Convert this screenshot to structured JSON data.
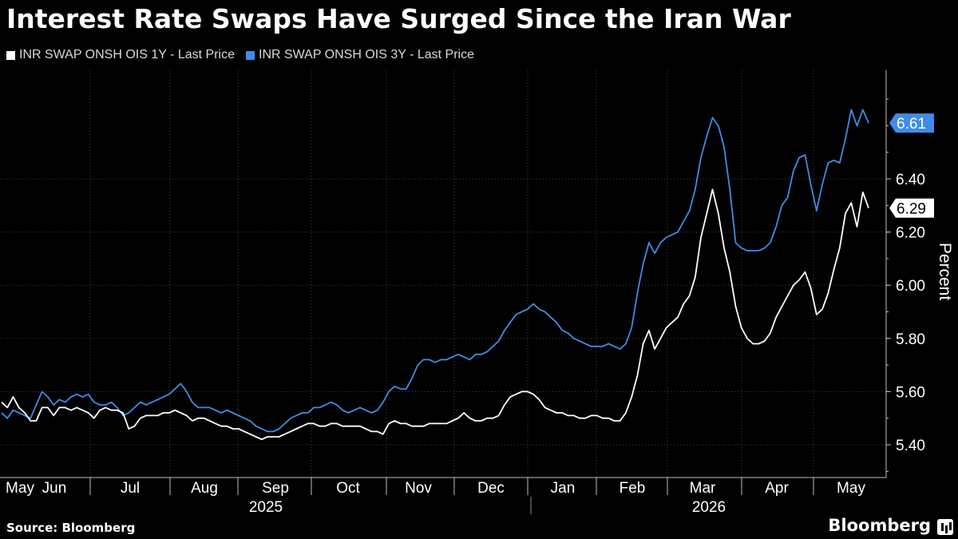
{
  "title": "Interest Rate Swaps Have Surged Since the Iran War",
  "source": "Source: Bloomberg",
  "brand": "Bloomberg",
  "chart_data": {
    "type": "line",
    "ylabel": "Percent",
    "ylim": [
      5.35,
      6.8
    ],
    "yticks": [
      "5.40",
      "5.60",
      "5.80",
      "6.00",
      "6.20",
      "6.40"
    ],
    "months": [
      "May",
      "Jun",
      "Jul",
      "Aug",
      "Sep",
      "Oct",
      "Nov",
      "Dec",
      "Jan",
      "Feb",
      "Mar",
      "Apr",
      "May"
    ],
    "years": [
      "2025",
      "2026"
    ],
    "series": [
      {
        "name": "INR SWAP ONSH OIS 1Y - Last Price",
        "color": "#ffffff",
        "last_label": "6.29",
        "last_value": 6.29,
        "values": [
          5.56,
          5.54,
          5.58,
          5.54,
          5.52,
          5.49,
          5.49,
          5.54,
          5.54,
          5.51,
          5.54,
          5.54,
          5.53,
          5.54,
          5.53,
          5.52,
          5.5,
          5.53,
          5.54,
          5.53,
          5.53,
          5.52,
          5.46,
          5.47,
          5.5,
          5.51,
          5.51,
          5.51,
          5.52,
          5.52,
          5.53,
          5.52,
          5.51,
          5.49,
          5.5,
          5.5,
          5.49,
          5.48,
          5.47,
          5.47,
          5.46,
          5.46,
          5.45,
          5.44,
          5.43,
          5.42,
          5.43,
          5.43,
          5.43,
          5.44,
          5.45,
          5.46,
          5.47,
          5.48,
          5.48,
          5.47,
          5.47,
          5.48,
          5.48,
          5.47,
          5.47,
          5.47,
          5.47,
          5.46,
          5.45,
          5.45,
          5.44,
          5.48,
          5.49,
          5.48,
          5.48,
          5.47,
          5.47,
          5.47,
          5.48,
          5.48,
          5.48,
          5.48,
          5.49,
          5.5,
          5.52,
          5.5,
          5.49,
          5.49,
          5.5,
          5.5,
          5.51,
          5.55,
          5.58,
          5.59,
          5.6,
          5.6,
          5.59,
          5.57,
          5.54,
          5.53,
          5.52,
          5.52,
          5.51,
          5.51,
          5.5,
          5.5,
          5.51,
          5.51,
          5.5,
          5.5,
          5.49,
          5.49,
          5.52,
          5.58,
          5.66,
          5.78,
          5.83,
          5.76,
          5.8,
          5.84,
          5.86,
          5.88,
          5.93,
          5.96,
          6.03,
          6.18,
          6.27,
          6.36,
          6.27,
          6.14,
          6.05,
          5.92,
          5.84,
          5.8,
          5.78,
          5.78,
          5.79,
          5.82,
          5.88,
          5.92,
          5.96,
          6.0,
          6.02,
          6.05,
          5.99,
          5.89,
          5.91,
          5.97,
          6.06,
          6.14,
          6.27,
          6.31,
          6.22,
          6.35,
          6.29
        ]
      },
      {
        "name": "INR SWAP ONSH OIS 3Y - Last Price",
        "color": "#3f8ce8",
        "last_label": "6.61",
        "last_value": 6.61,
        "values": [
          5.52,
          5.5,
          5.53,
          5.52,
          5.51,
          5.5,
          5.55,
          5.6,
          5.58,
          5.55,
          5.57,
          5.56,
          5.58,
          5.59,
          5.58,
          5.59,
          5.56,
          5.55,
          5.55,
          5.56,
          5.54,
          5.51,
          5.52,
          5.54,
          5.56,
          5.55,
          5.56,
          5.57,
          5.58,
          5.59,
          5.61,
          5.63,
          5.6,
          5.56,
          5.54,
          5.54,
          5.54,
          5.53,
          5.52,
          5.53,
          5.52,
          5.51,
          5.5,
          5.49,
          5.47,
          5.46,
          5.45,
          5.45,
          5.46,
          5.48,
          5.5,
          5.51,
          5.52,
          5.52,
          5.54,
          5.54,
          5.55,
          5.56,
          5.55,
          5.53,
          5.52,
          5.53,
          5.54,
          5.53,
          5.52,
          5.53,
          5.56,
          5.6,
          5.62,
          5.61,
          5.61,
          5.65,
          5.7,
          5.72,
          5.72,
          5.71,
          5.72,
          5.72,
          5.73,
          5.74,
          5.73,
          5.72,
          5.74,
          5.74,
          5.75,
          5.77,
          5.79,
          5.83,
          5.86,
          5.89,
          5.9,
          5.91,
          5.93,
          5.91,
          5.9,
          5.88,
          5.86,
          5.83,
          5.82,
          5.8,
          5.79,
          5.78,
          5.77,
          5.77,
          5.77,
          5.78,
          5.77,
          5.76,
          5.78,
          5.84,
          5.97,
          6.08,
          6.16,
          6.12,
          6.16,
          6.18,
          6.19,
          6.2,
          6.24,
          6.28,
          6.36,
          6.48,
          6.56,
          6.63,
          6.6,
          6.52,
          6.36,
          6.16,
          6.14,
          6.13,
          6.13,
          6.13,
          6.14,
          6.16,
          6.22,
          6.3,
          6.33,
          6.43,
          6.48,
          6.49,
          6.38,
          6.28,
          6.38,
          6.46,
          6.47,
          6.46,
          6.55,
          6.66,
          6.6,
          6.66,
          6.61
        ]
      }
    ]
  }
}
